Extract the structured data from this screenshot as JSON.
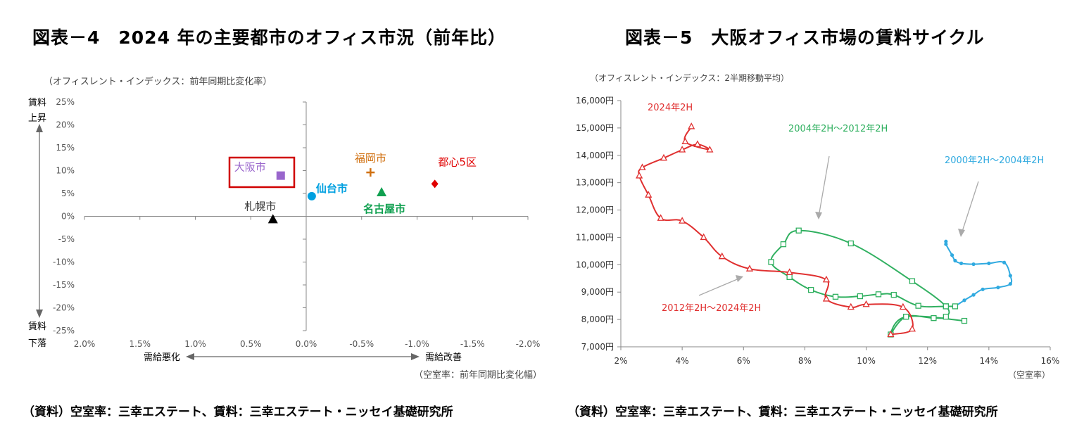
{
  "figures": {
    "left_title": "図表－4　2024 年の主要都市のオフィス市況（前年比）",
    "right_title": "図表－5　大阪オフィス市場の賃料サイクル",
    "left_source": "（資料）空室率：三幸エステート、賃料：三幸エステート・ニッセイ基礎研究所",
    "right_source": "（資料）空室率：三幸エステート、賃料：三幸エステート・ニッセイ基礎研究所"
  },
  "colors": {
    "osaka": "#9966cc",
    "osaka_box": "#d00000",
    "sendai": "#00a0e0",
    "fukuoka": "#d07010",
    "nagoya": "#10a050",
    "tokyo5": "#e00000",
    "sapporo": "#000000",
    "cycle_2004_2012": "#30b060",
    "cycle_2000_2004": "#30aae0",
    "cycle_2012_2024": "#e03030"
  },
  "chart_data": [
    {
      "type": "scatter",
      "unit_note": "（オフィスレント・インデックス：前年同期比変化率）",
      "x_unit_note": "（空室率：前年同期比変化幅）",
      "x_axis_direction": "reversed",
      "xlim": [
        2.0,
        -2.0
      ],
      "ylim": [
        -25,
        25
      ],
      "x_ticks": [
        "2.0%",
        "1.5%",
        "1.0%",
        "0.5%",
        "0.0%",
        "-0.5%",
        "-1.0%",
        "-1.5%",
        "-2.0%"
      ],
      "x_tick_values": [
        2.0,
        1.5,
        1.0,
        0.5,
        0.0,
        -0.5,
        -1.0,
        -1.5,
        -2.0
      ],
      "y_ticks": [
        "25%",
        "20%",
        "15%",
        "10%",
        "5%",
        "0%",
        "-5%",
        "-10%",
        "-15%",
        "-20%",
        "-25%"
      ],
      "y_tick_values": [
        25,
        20,
        15,
        10,
        5,
        0,
        -5,
        -10,
        -15,
        -20,
        -25
      ],
      "y_top_label_1": "賃料",
      "y_top_label_2": "上昇",
      "y_bottom_label_1": "賃料",
      "y_bottom_label_2": "下落",
      "x_left_label": "需給悪化",
      "x_right_label": "需給改善",
      "points": [
        {
          "name": "大阪市",
          "x": 0.23,
          "y": 8.9,
          "marker": "square",
          "color_key": "osaka",
          "highlight": true
        },
        {
          "name": "仙台市",
          "x": -0.05,
          "y": 4.4,
          "marker": "circle",
          "color_key": "sendai"
        },
        {
          "name": "福岡市",
          "x": -0.58,
          "y": 9.6,
          "marker": "plus",
          "color_key": "fukuoka"
        },
        {
          "name": "名古屋市",
          "x": -0.68,
          "y": 5.3,
          "marker": "triangle",
          "color_key": "nagoya"
        },
        {
          "name": "都心5区",
          "x": -1.16,
          "y": 7.1,
          "marker": "diamond",
          "color_key": "tokyo5"
        },
        {
          "name": "札幌市",
          "x": 0.3,
          "y": -0.6,
          "marker": "triangle",
          "color_key": "sapporo"
        }
      ]
    },
    {
      "type": "line",
      "unit_note": "（オフィスレント・インデックス：2半期移動平均）",
      "x_unit_note": "（空室率）",
      "xlim": [
        2,
        16
      ],
      "ylim": [
        7000,
        16000
      ],
      "x_ticks": [
        "2%",
        "4%",
        "6%",
        "8%",
        "10%",
        "12%",
        "14%",
        "16%"
      ],
      "x_tick_values": [
        2,
        4,
        6,
        8,
        10,
        12,
        14,
        16
      ],
      "y_ticks": [
        "16,000円",
        "15,000円",
        "14,000円",
        "13,000円",
        "12,000円",
        "11,000円",
        "10,000円",
        "9,000円",
        "8,000円",
        "7,000円"
      ],
      "y_tick_values": [
        16000,
        15000,
        14000,
        13000,
        12000,
        11000,
        10000,
        9000,
        8000,
        7000
      ],
      "annotations": {
        "end_label": "2024年2H",
        "label_2004_2012": "2004年2H～2012年2H",
        "label_2000_2004": "2000年2H～2004年2H",
        "label_2012_2024": "2012年2H～2024年2H"
      },
      "series": [
        {
          "name": "2000年2H～2004年2H",
          "color_key": "cycle_2000_2004",
          "marker": "star",
          "points": [
            [
              12.6,
              10850
            ],
            [
              12.6,
              10750
            ],
            [
              12.8,
              10350
            ],
            [
              12.9,
              10150
            ],
            [
              13.1,
              10050
            ],
            [
              13.5,
              10020
            ],
            [
              14.0,
              10050
            ],
            [
              14.5,
              10080
            ],
            [
              14.7,
              9600
            ],
            [
              14.7,
              9300
            ],
            [
              14.3,
              9170
            ],
            [
              13.8,
              9100
            ],
            [
              13.5,
              8900
            ],
            [
              13.2,
              8700
            ],
            [
              12.9,
              8480
            ]
          ]
        },
        {
          "name": "2004年2H～2012年2H",
          "color_key": "cycle_2004_2012",
          "marker": "square",
          "points": [
            [
              12.9,
              8480
            ],
            [
              12.6,
              8480
            ],
            [
              11.7,
              8500
            ],
            [
              10.9,
              8900
            ],
            [
              10.4,
              8920
            ],
            [
              9.8,
              8850
            ],
            [
              9.0,
              8830
            ],
            [
              8.2,
              9080
            ],
            [
              7.5,
              9550
            ],
            [
              6.9,
              10100
            ],
            [
              7.3,
              10750
            ],
            [
              7.8,
              11250
            ],
            [
              9.5,
              10780
            ],
            [
              11.5,
              9400
            ],
            [
              12.6,
              8480
            ],
            [
              12.6,
              8100
            ],
            [
              12.2,
              8050
            ],
            [
              11.3,
              8100
            ],
            [
              10.8,
              7450
            ],
            [
              11.3,
              8100
            ],
            [
              13.2,
              7950
            ]
          ]
        },
        {
          "name": "2012年2H～2024年2H",
          "color_key": "cycle_2012_2024",
          "marker": "triangle",
          "points": [
            [
              10.8,
              7450
            ],
            [
              11.5,
              7650
            ],
            [
              11.2,
              8450
            ],
            [
              10.0,
              8550
            ],
            [
              9.5,
              8450
            ],
            [
              8.7,
              8750
            ],
            [
              8.7,
              9450
            ],
            [
              7.5,
              9720
            ],
            [
              6.2,
              9850
            ],
            [
              5.3,
              10300
            ],
            [
              4.7,
              11000
            ],
            [
              4.0,
              11600
            ],
            [
              3.3,
              11700
            ],
            [
              2.9,
              12550
            ],
            [
              2.6,
              13250
            ],
            [
              2.7,
              13550
            ],
            [
              3.4,
              13900
            ],
            [
              4.0,
              14200
            ],
            [
              4.5,
              14400
            ],
            [
              4.9,
              14200
            ],
            [
              4.1,
              14500
            ],
            [
              4.3,
              15050
            ]
          ]
        }
      ]
    }
  ]
}
